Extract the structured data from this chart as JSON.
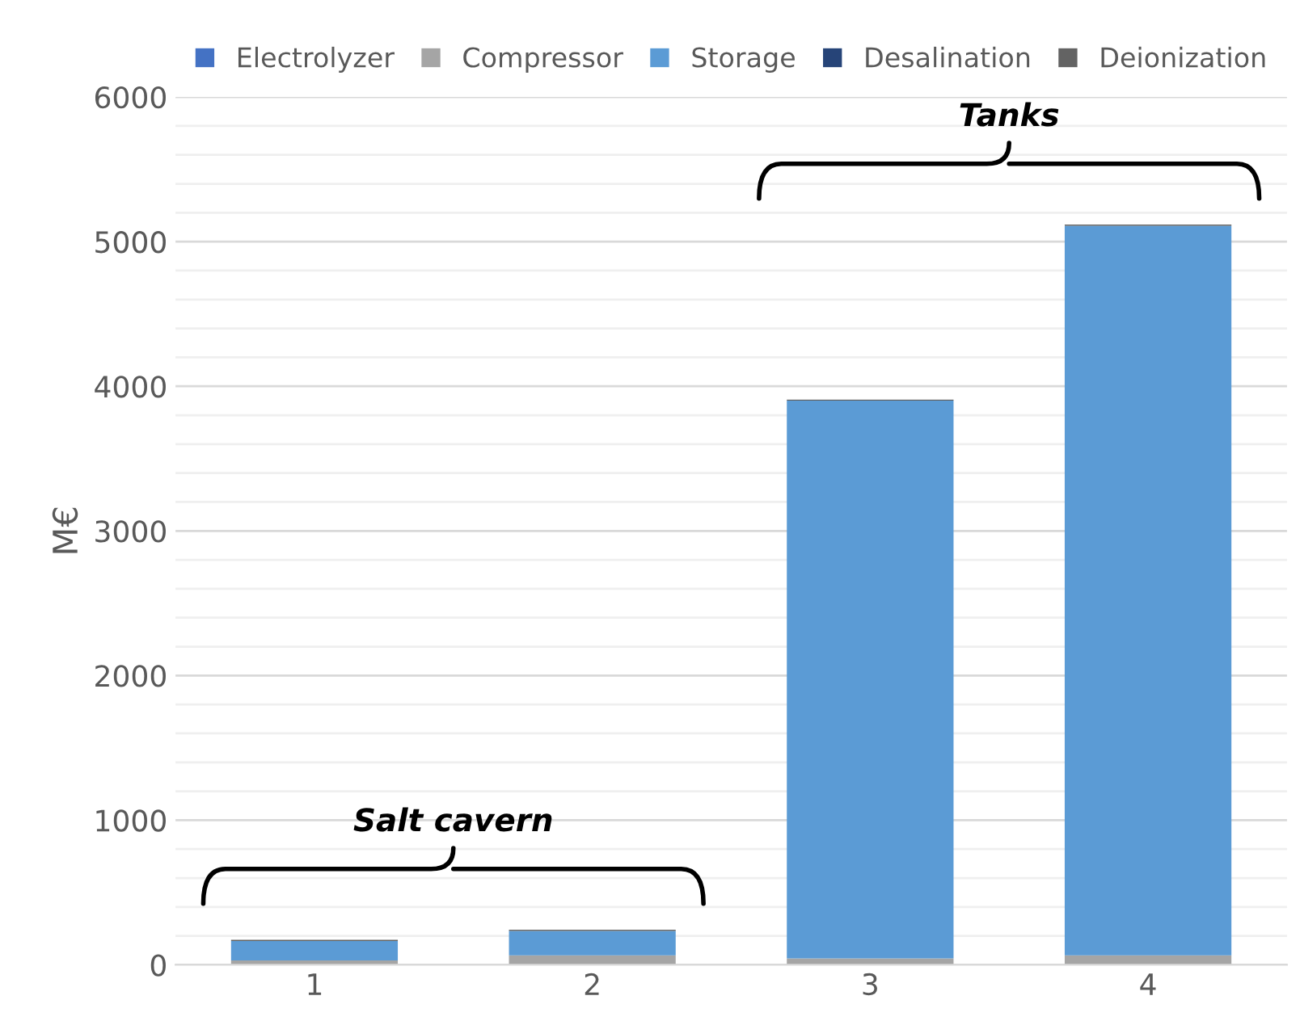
{
  "chart_data": {
    "type": "bar",
    "stacked": true,
    "ylabel": "M€",
    "categories": [
      "1",
      "2",
      "3",
      "4"
    ],
    "series": [
      {
        "name": "Electrolyzer",
        "color": "#4472c4",
        "values": [
          null,
          null,
          null,
          null
        ]
      },
      {
        "name": "Compressor",
        "color": "#a5a5a5",
        "values": [
          30,
          65,
          45,
          65
        ]
      },
      {
        "name": "Storage",
        "color": "#5b9bd5",
        "values": [
          135,
          170,
          3855,
          5045
        ]
      },
      {
        "name": "Desalination",
        "color": "#264478",
        "values": [
          null,
          null,
          null,
          null
        ]
      },
      {
        "name": "Deionization",
        "color": "#636363",
        "values": [
          8,
          8,
          8,
          8
        ]
      }
    ],
    "ylim": [
      0,
      6000
    ],
    "yticks": [
      0,
      {
        "value": 200,
        "label": null
      },
      {
        "value": 400,
        "label": null
      },
      {
        "value": 600,
        "label": null
      },
      {
        "value": 800,
        "label": null
      },
      1000,
      {
        "value": 1200,
        "label": null
      },
      {
        "value": 1400,
        "label": null
      },
      {
        "value": 1600,
        "label": null
      },
      {
        "value": 1800,
        "label": null
      },
      2000,
      {
        "value": 2200,
        "label": null
      },
      {
        "value": 2400,
        "label": null
      },
      {
        "value": 2600,
        "label": null
      },
      {
        "value": 2800,
        "label": null
      },
      3000,
      {
        "value": 3200,
        "label": null
      },
      {
        "value": 3400,
        "label": null
      },
      {
        "value": 3600,
        "label": null
      },
      {
        "value": 3800,
        "label": null
      },
      4000,
      {
        "value": 4200,
        "label": null
      },
      {
        "value": 4400,
        "label": null
      },
      {
        "value": 4600,
        "label": null
      },
      {
        "value": 4800,
        "label": null
      },
      5000,
      {
        "value": 5200,
        "label": null
      },
      {
        "value": 5400,
        "label": null
      },
      {
        "value": 5600,
        "label": null
      },
      {
        "value": 5800,
        "label": null
      },
      6000
    ],
    "grid": "y",
    "legend": "top",
    "annotations": [
      "Salt cavern",
      "Tanks"
    ]
  }
}
